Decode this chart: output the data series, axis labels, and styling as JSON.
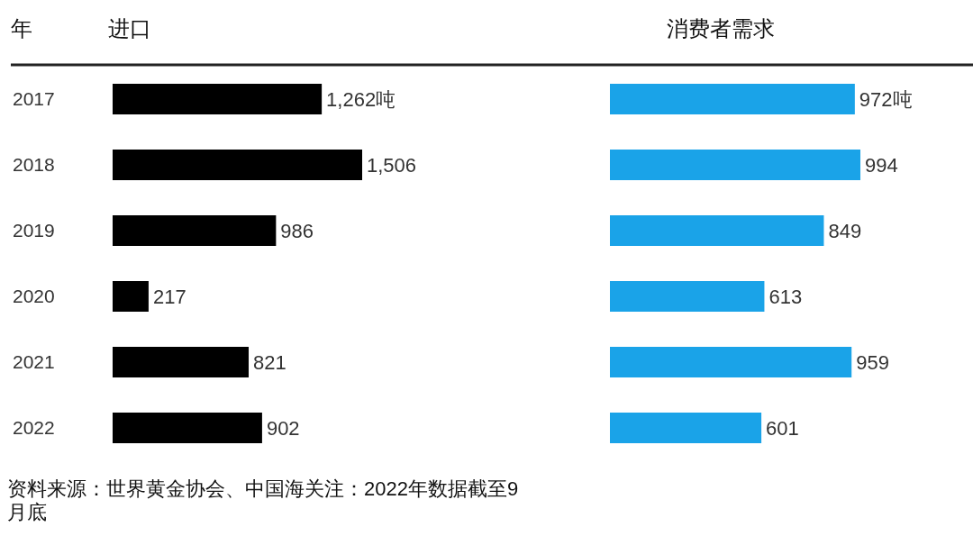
{
  "chart_data": [
    {
      "type": "bar",
      "orientation": "horizontal",
      "title": "进口",
      "ylabel": "年",
      "categories": [
        "2017",
        "2018",
        "2019",
        "2020",
        "2021",
        "2022"
      ],
      "values": [
        1262,
        1506,
        986,
        217,
        821,
        902
      ],
      "color": "#000000",
      "value_labels": [
        "1,262吨",
        "1,506",
        "986",
        "217",
        "821",
        "902"
      ],
      "annotations": [
        "资料来源：世界黄金协会、中国海关注：2022年数据截至9月底"
      ]
    },
    {
      "type": "bar",
      "orientation": "horizontal",
      "title": "消费者需求",
      "categories": [
        "2017",
        "2018",
        "2019",
        "2020",
        "2021",
        "2022"
      ],
      "values": [
        972,
        994,
        849,
        613,
        959,
        601
      ],
      "color": "#1aa3e8",
      "value_labels": [
        "972吨",
        "994",
        "849",
        "613",
        "959",
        "601"
      ],
      "tick_labels": false
    }
  ]
}
